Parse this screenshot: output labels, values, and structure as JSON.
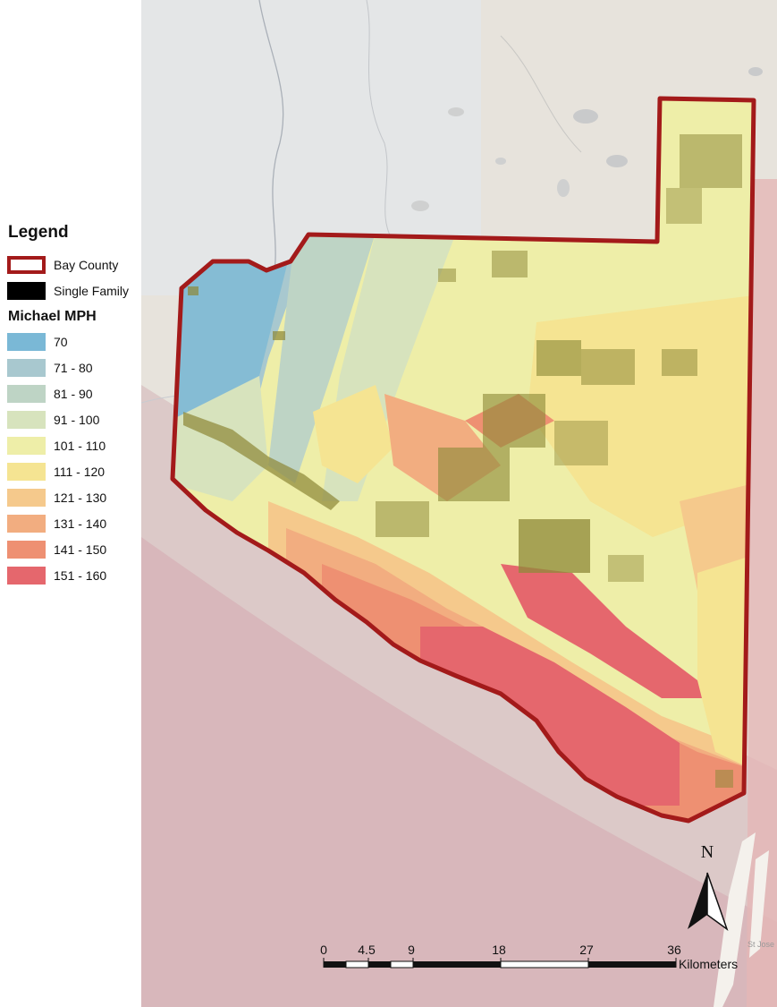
{
  "legend": {
    "title": "Legend",
    "items": [
      {
        "label": "Bay County",
        "type": "outline",
        "color": "#a31a1a"
      },
      {
        "label": "Single Family",
        "type": "fill",
        "color": "#000000"
      }
    ],
    "ramp_title": "Michael MPH",
    "ramp": [
      {
        "label": "70",
        "color": "#7ab8d6"
      },
      {
        "label": "71 - 80",
        "color": "#a8c8cf"
      },
      {
        "label": "81 - 90",
        "color": "#bed4c5"
      },
      {
        "label": "91 - 100",
        "color": "#d7e3bd"
      },
      {
        "label": "101 - 110",
        "color": "#eeeea8"
      },
      {
        "label": "111 - 120",
        "color": "#f5e492"
      },
      {
        "label": "121 - 130",
        "color": "#f5c98c"
      },
      {
        "label": "131 - 140",
        "color": "#f2ad80"
      },
      {
        "label": "141 - 150",
        "color": "#ee9072"
      },
      {
        "label": "151 - 160",
        "color": "#e5676d"
      }
    ]
  },
  "map": {
    "county_outline_color": "#a31a1a",
    "building_color": "#8f8a3a",
    "north_arrow_label": "N",
    "place_label": "St Jose"
  },
  "scale_bar": {
    "ticks": [
      "0",
      "4.5",
      "9",
      "18",
      "27",
      "36"
    ],
    "units": "Kilometers"
  }
}
